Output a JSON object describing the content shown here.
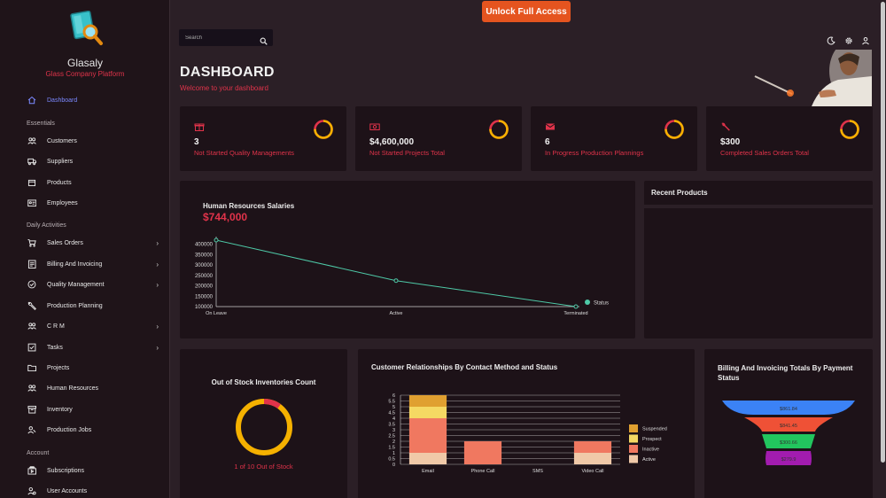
{
  "brand": {
    "name": "Glasaly",
    "subtitle": "Glass Company Platform"
  },
  "sidebar": {
    "active": {
      "label": "Dashboard",
      "icon": "home-icon"
    },
    "sections": [
      {
        "label": "Essentials"
      },
      {
        "label": "Daily Activities"
      },
      {
        "label": "Account"
      }
    ],
    "items": [
      {
        "label": "Customers",
        "icon": "users-icon"
      },
      {
        "label": "Suppliers",
        "icon": "truck-icon"
      },
      {
        "label": "Products",
        "icon": "box-icon"
      },
      {
        "label": "Employees",
        "icon": "id-card-icon"
      },
      {
        "label": "Sales Orders",
        "icon": "cart-icon",
        "chevron": "›"
      },
      {
        "label": "Billing And Invoicing",
        "icon": "receipt-icon",
        "chevron": "›"
      },
      {
        "label": "Quality Management",
        "icon": "check-badge-icon",
        "chevron": "›"
      },
      {
        "label": "Production Planning",
        "icon": "wrench-icon"
      },
      {
        "label": "C R M",
        "icon": "people-icon",
        "chevron": "›"
      },
      {
        "label": "Tasks",
        "icon": "checkbox-icon",
        "chevron": "›"
      },
      {
        "label": "Projects",
        "icon": "folder-icon"
      },
      {
        "label": "Human Resources",
        "icon": "group-icon"
      },
      {
        "label": "Inventory",
        "icon": "archive-icon"
      },
      {
        "label": "Production Jobs",
        "icon": "worker-icon"
      },
      {
        "label": "Subscriptions",
        "icon": "subscriptions-icon"
      },
      {
        "label": "User Accounts",
        "icon": "user-gear-icon"
      }
    ]
  },
  "topbar": {
    "unlock_label": "Unlock Full Access",
    "search_placeholder": "Search",
    "icons": [
      "moon-icon",
      "gear-icon",
      "user-icon"
    ]
  },
  "header": {
    "title": "DASHBOARD",
    "subtitle": "Welcome to your dashboard"
  },
  "stats": [
    {
      "value": "3",
      "label": "Not Started Quality Managements",
      "icon": "gift-icon",
      "progress": 0.75
    },
    {
      "value": "$4,600,000",
      "label": "Not Started Projects Total",
      "icon": "money-icon",
      "progress": 0.75
    },
    {
      "value": "6",
      "label": "In Progress Production Plannings",
      "icon": "mail-icon",
      "progress": 0.75
    },
    {
      "value": "$300",
      "label": "Completed Sales Orders Total",
      "icon": "wrench-icon",
      "progress": 0.75
    }
  ],
  "colors": {
    "accent": "#e0334a",
    "ring_main": "#f5b100",
    "line": "#4ec9a7",
    "unlock": "#e5541f",
    "nav_active": "#7b89ff"
  },
  "hr_salaries": {
    "title": "Human Resources Salaries",
    "total": "$744,000",
    "chart_data": {
      "type": "line",
      "categories": [
        "On Leave",
        "Active",
        "Terminated"
      ],
      "values": [
        420000,
        225000,
        100000
      ],
      "y_ticks": [
        "400000",
        "350000",
        "300000",
        "250000",
        "200000",
        "150000",
        "100000"
      ],
      "ylim": [
        100000,
        420000
      ],
      "series": [
        {
          "name": "Status",
          "values": [
            420000,
            225000,
            100000
          ]
        }
      ],
      "legend": "right"
    }
  },
  "recent_products": {
    "title": "Recent Products"
  },
  "out_of_stock": {
    "title": "Out of Stock Inventories Count",
    "text": "1 of 10 Out of Stock",
    "chart_data": {
      "type": "pie",
      "values": [
        1,
        9
      ]
    }
  },
  "crm": {
    "title": "Customer Relationships By Contact Method and Status",
    "chart_data": {
      "type": "bar",
      "stacked": true,
      "categories": [
        "Email",
        "Phone Call",
        "SMS",
        "Video Call"
      ],
      "y_ticks": [
        "6",
        "5.5",
        "5",
        "4.5",
        "4",
        "3.5",
        "3",
        "2.5",
        "2",
        "1.5",
        "1",
        "0.5",
        "0"
      ],
      "ylim": [
        0,
        6
      ],
      "series": [
        {
          "name": "Active",
          "color": "#f0c9a8",
          "values": [
            1,
            0,
            0,
            1
          ]
        },
        {
          "name": "Inactive",
          "color": "#f07860",
          "values": [
            3,
            2,
            0,
            1
          ]
        },
        {
          "name": "Prospect",
          "color": "#f5d963",
          "values": [
            1,
            0,
            0,
            0
          ]
        },
        {
          "name": "Suspended",
          "color": "#e0a030",
          "values": [
            1,
            0,
            0,
            0
          ]
        }
      ],
      "legend": "right"
    }
  },
  "billing": {
    "title": "Billing And Invoicing Totals By Payment Status",
    "chart_data": {
      "type": "funnel",
      "values": [
        "$861.84",
        "$841.45",
        "$300.66",
        "$279.9"
      ],
      "colors": [
        "#3b82f6",
        "#ef5136",
        "#22c55e",
        "#a21caf"
      ]
    }
  }
}
